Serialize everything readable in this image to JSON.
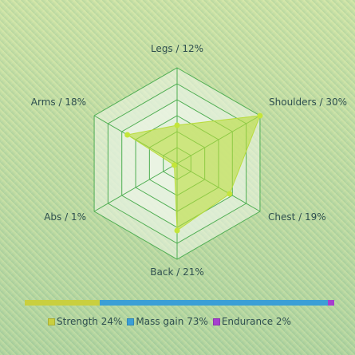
{
  "chart_data": {
    "type": "radar",
    "axes": [
      "Legs",
      "Shoulders",
      "Chest",
      "Back",
      "Abs",
      "Arms"
    ],
    "values": [
      12,
      30,
      19,
      21,
      1,
      18
    ],
    "unit": "%",
    "rmax": 30,
    "rings": 6,
    "axis_labels": [
      "Legs / 12%",
      "Shoulders / 30%",
      "Chest / 19%",
      "Back / 21%",
      "Abs / 1%",
      "Arms / 18%"
    ],
    "fill_color": "#b9dc3c",
    "point_color": "#c4e53a"
  },
  "goals": [
    {
      "label": "Strength 24%",
      "value": 24,
      "color": "#c9cf3f"
    },
    {
      "label": "Mass gain 73%",
      "value": 73,
      "color": "#3b9fd6"
    },
    {
      "label": "Endurance 2%",
      "value": 2,
      "color": "#a63fcf"
    }
  ]
}
